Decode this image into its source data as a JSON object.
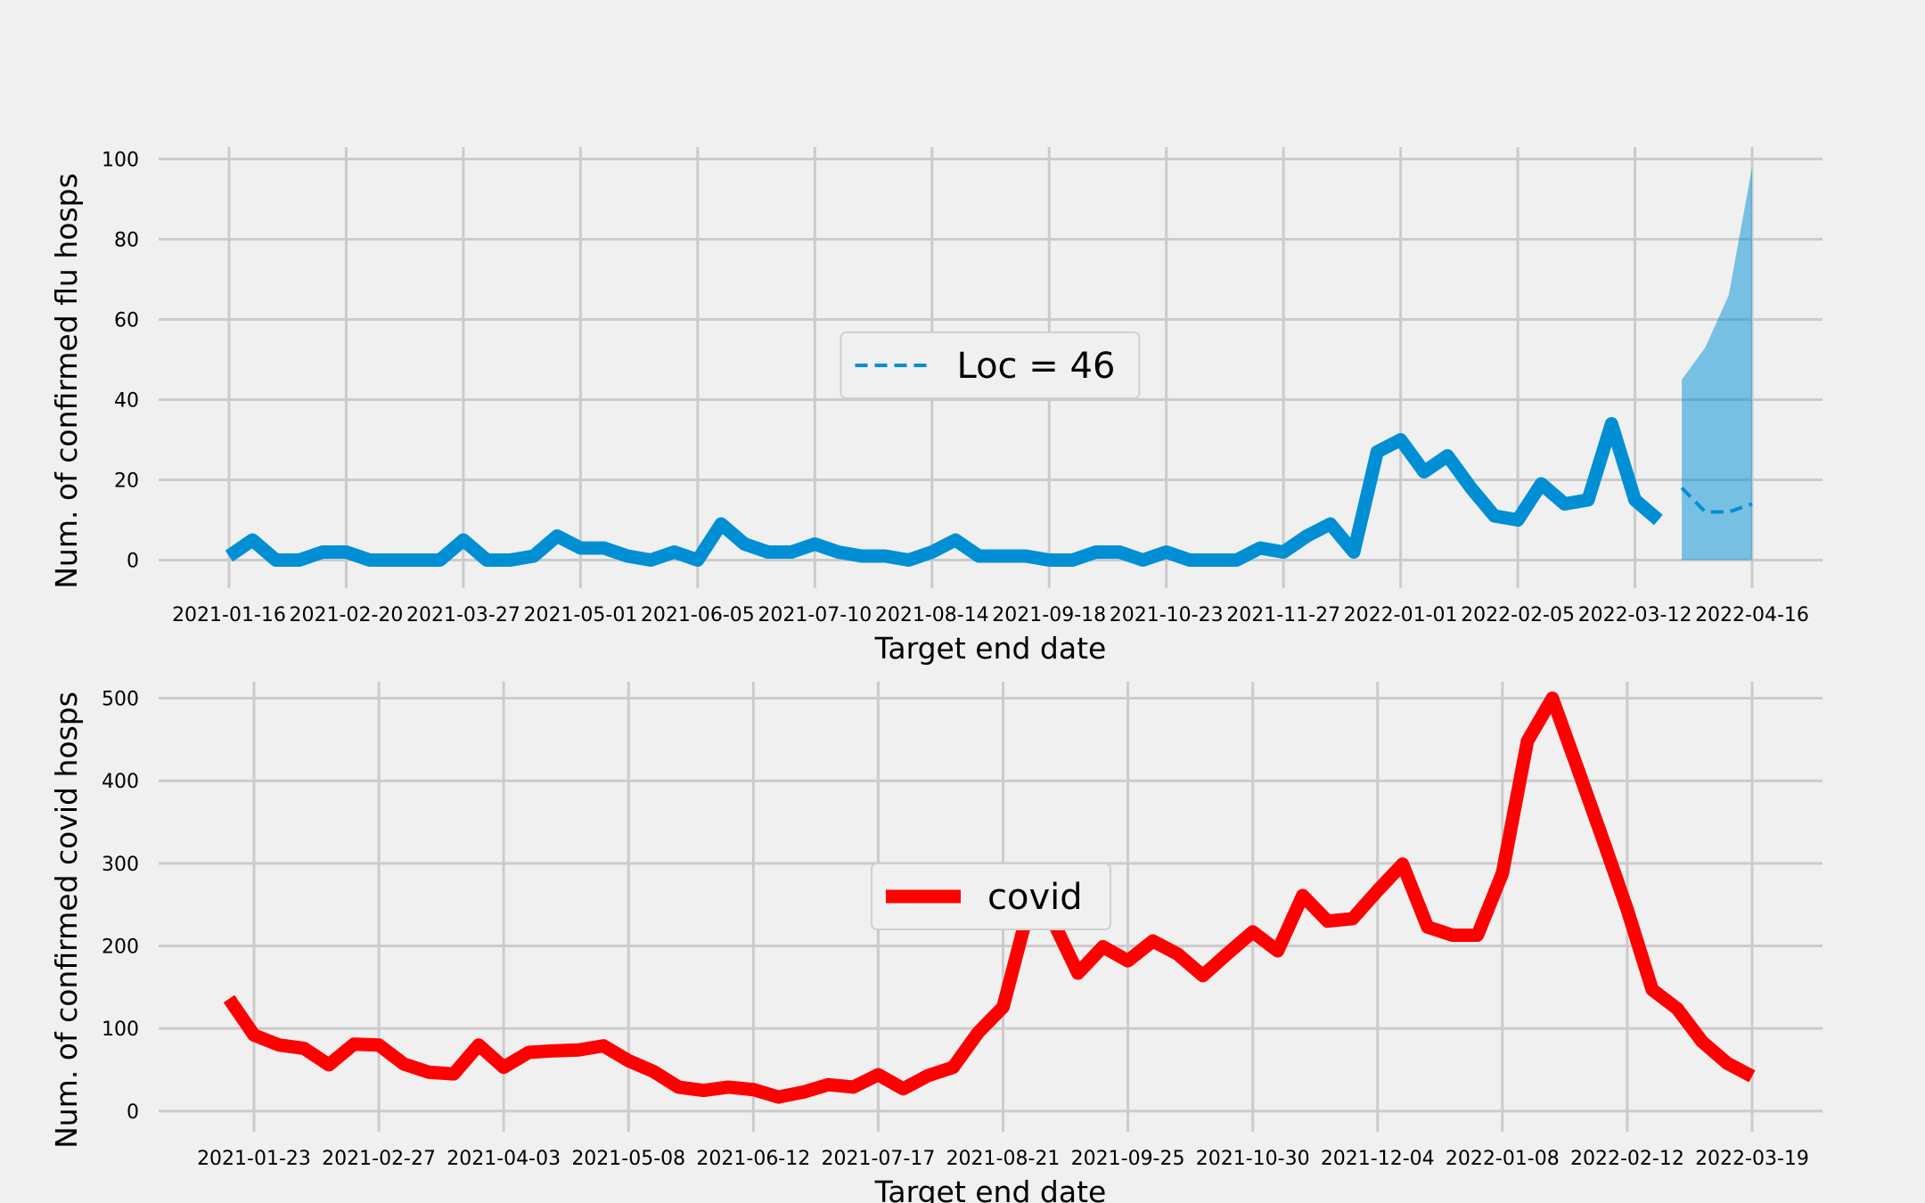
{
  "chart_data": [
    {
      "type": "line",
      "xlabel": "Target end date",
      "ylabel": "Num. of confirmed flu hosps",
      "ylim": [
        -7,
        103
      ],
      "yticks": [
        0,
        20,
        40,
        60,
        80,
        100
      ],
      "grid": true,
      "legend_placement": "center",
      "xticks": [
        "2021-01-16",
        "2021-02-20",
        "2021-03-27",
        "2021-05-01",
        "2021-06-05",
        "2021-07-10",
        "2021-08-14",
        "2021-09-18",
        "2021-10-23",
        "2021-11-27",
        "2022-01-01",
        "2022-02-05",
        "2022-03-12",
        "2022-04-16"
      ],
      "series": [
        {
          "color": "#008fd5",
          "style": "solid",
          "x": [
            "2021-01-16",
            "2021-01-23",
            "2021-01-30",
            "2021-02-06",
            "2021-02-13",
            "2021-02-20",
            "2021-02-27",
            "2021-03-06",
            "2021-03-13",
            "2021-03-20",
            "2021-03-27",
            "2021-04-03",
            "2021-04-10",
            "2021-04-17",
            "2021-04-24",
            "2021-05-01",
            "2021-05-08",
            "2021-05-15",
            "2021-05-22",
            "2021-05-29",
            "2021-06-05",
            "2021-06-12",
            "2021-06-19",
            "2021-06-26",
            "2021-07-03",
            "2021-07-10",
            "2021-07-17",
            "2021-07-24",
            "2021-07-31",
            "2021-08-07",
            "2021-08-14",
            "2021-08-21",
            "2021-08-28",
            "2021-09-04",
            "2021-09-11",
            "2021-09-18",
            "2021-09-25",
            "2021-10-02",
            "2021-10-09",
            "2021-10-16",
            "2021-10-23",
            "2021-10-30",
            "2021-11-06",
            "2021-11-13",
            "2021-11-20",
            "2021-11-27",
            "2021-12-04",
            "2021-12-11",
            "2021-12-18",
            "2021-12-25",
            "2022-01-01",
            "2022-01-08",
            "2022-01-15",
            "2022-01-22",
            "2022-01-29",
            "2022-02-05",
            "2022-02-12",
            "2022-02-19",
            "2022-02-26",
            "2022-03-05",
            "2022-03-12",
            "2022-03-19"
          ],
          "y": [
            1,
            5,
            0,
            0,
            2,
            2,
            0,
            0,
            0,
            0,
            5,
            0,
            0,
            1,
            6,
            3,
            3,
            1,
            0,
            2,
            0,
            9,
            4,
            2,
            2,
            4,
            2,
            1,
            1,
            0,
            2,
            5,
            1,
            1,
            1,
            0,
            0,
            2,
            2,
            0,
            2,
            0,
            0,
            0,
            3,
            2,
            6,
            9,
            2,
            27,
            30,
            22,
            26,
            18,
            11,
            10,
            19,
            14,
            15,
            34,
            15,
            10
          ]
        },
        {
          "name": "Loc = 46",
          "color": "#008fd5",
          "style": "dashed",
          "x": [
            "2022-03-26",
            "2022-04-02",
            "2022-04-09",
            "2022-04-16"
          ],
          "y": [
            18,
            12,
            12,
            14
          ],
          "band_lower": [
            0,
            0,
            0,
            0
          ],
          "band_upper": [
            45,
            53,
            66,
            98
          ],
          "band_color": "#008fd5"
        }
      ]
    },
    {
      "type": "line",
      "xlabel": "Target end date",
      "ylabel": "Num. of confirmed covid hosps",
      "ylim": [
        -25,
        520
      ],
      "yticks": [
        0,
        100,
        200,
        300,
        400,
        500
      ],
      "grid": true,
      "legend_placement": "center",
      "xticks": [
        "2021-01-23",
        "2021-02-27",
        "2021-04-03",
        "2021-05-08",
        "2021-06-12",
        "2021-07-17",
        "2021-08-21",
        "2021-09-25",
        "2021-10-30",
        "2021-12-04",
        "2022-01-08",
        "2022-02-12",
        "2022-03-19"
      ],
      "series": [
        {
          "name": "covid",
          "color": "#ff0000",
          "style": "solid",
          "x": [
            "2021-01-16",
            "2021-01-23",
            "2021-01-30",
            "2021-02-06",
            "2021-02-13",
            "2021-02-20",
            "2021-02-27",
            "2021-03-06",
            "2021-03-13",
            "2021-03-20",
            "2021-03-27",
            "2021-04-03",
            "2021-04-10",
            "2021-04-17",
            "2021-04-24",
            "2021-05-01",
            "2021-05-08",
            "2021-05-15",
            "2021-05-22",
            "2021-05-29",
            "2021-06-05",
            "2021-06-12",
            "2021-06-19",
            "2021-06-26",
            "2021-07-03",
            "2021-07-10",
            "2021-07-17",
            "2021-07-24",
            "2021-07-31",
            "2021-08-07",
            "2021-08-14",
            "2021-08-21",
            "2021-08-28",
            "2021-09-04",
            "2021-09-11",
            "2021-09-18",
            "2021-09-25",
            "2021-10-02",
            "2021-10-09",
            "2021-10-16",
            "2021-10-23",
            "2021-10-30",
            "2021-11-06",
            "2021-11-13",
            "2021-11-20",
            "2021-11-27",
            "2021-12-04",
            "2021-12-11",
            "2021-12-18",
            "2021-12-25",
            "2022-01-01",
            "2022-01-08",
            "2022-01-15",
            "2022-01-22",
            "2022-01-29",
            "2022-02-05",
            "2022-02-12",
            "2022-02-19",
            "2022-02-26",
            "2022-03-05",
            "2022-03-12",
            "2022-03-19"
          ],
          "y": [
            136,
            92,
            80,
            76,
            56,
            81,
            80,
            57,
            47,
            45,
            80,
            53,
            71,
            73,
            74,
            79,
            61,
            48,
            29,
            25,
            29,
            26,
            17,
            23,
            32,
            29,
            44,
            27,
            43,
            53,
            95,
            126,
            242,
            230,
            167,
            199,
            182,
            206,
            190,
            164,
            191,
            217,
            194,
            261,
            230,
            233,
            267,
            299,
            223,
            213,
            213,
            288,
            448,
            500,
            416,
            331,
            244,
            147,
            124,
            84,
            58,
            42
          ]
        }
      ]
    }
  ]
}
